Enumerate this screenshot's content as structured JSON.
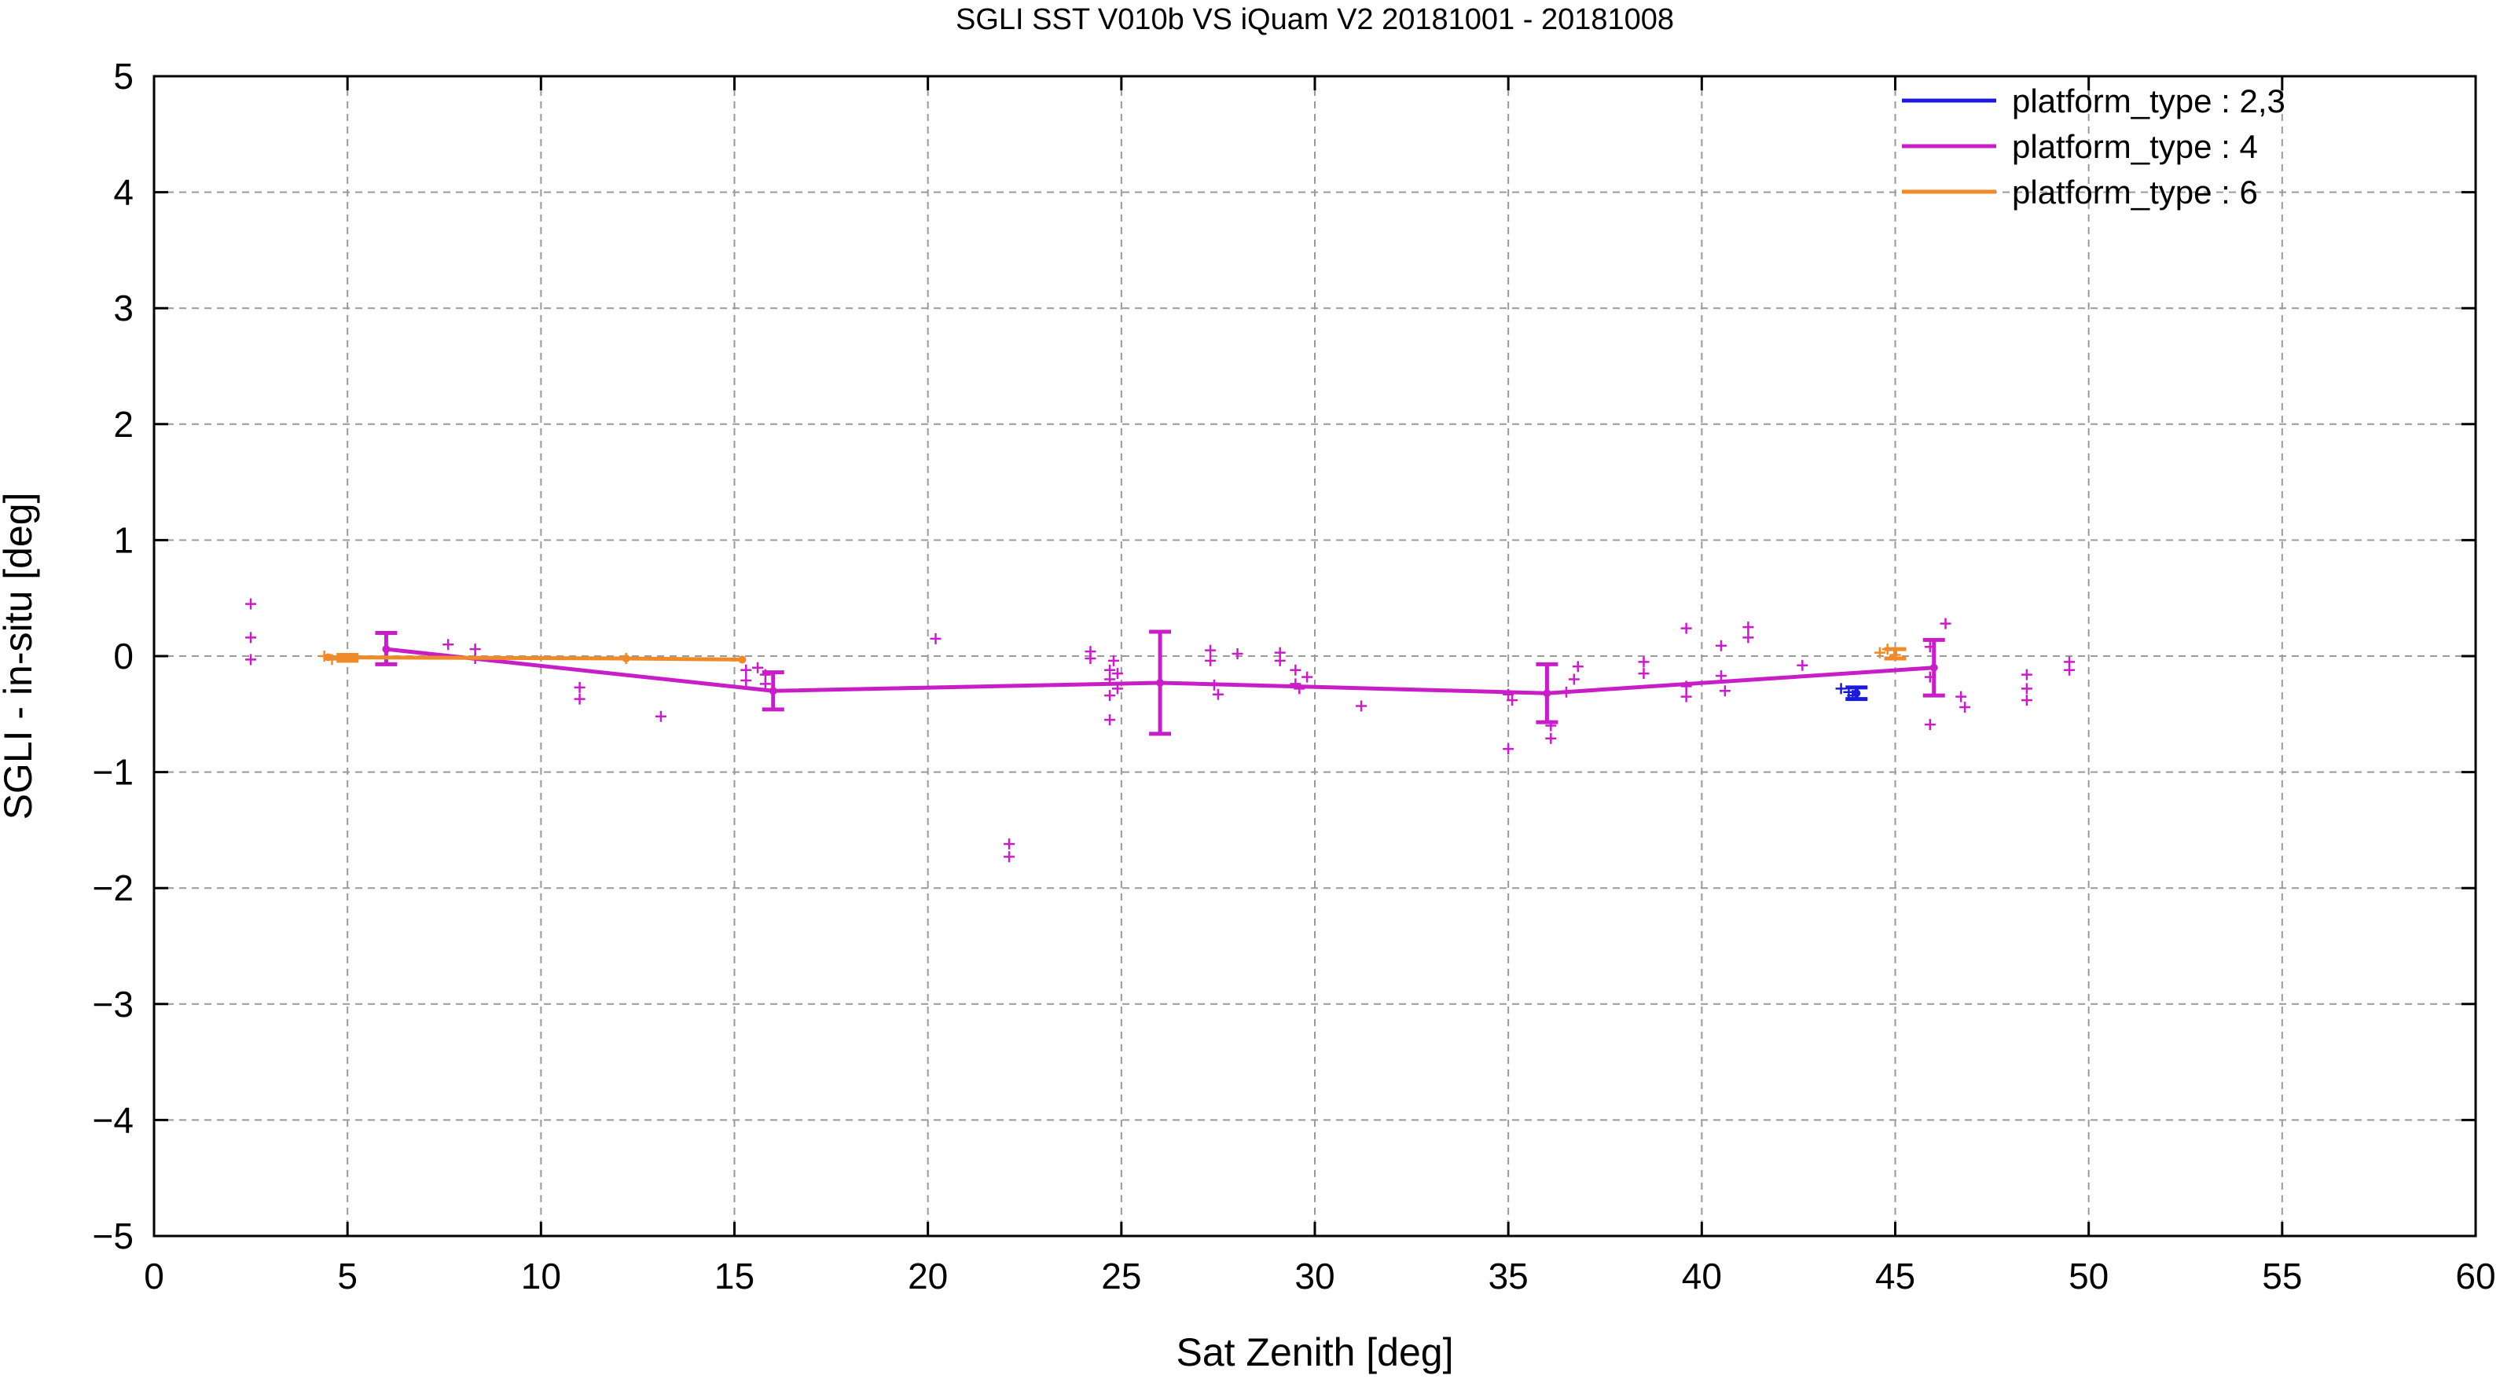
{
  "chart_data": {
    "type": "line",
    "title": "SGLI SST V010b VS iQuam V2 20181001 - 20181008",
    "xlabel": "Sat Zenith [deg]",
    "ylabel": "SGLI - in-situ [deg]",
    "xlim": [
      0,
      60
    ],
    "ylim": [
      -5,
      5
    ],
    "xticks": [
      0,
      5,
      10,
      15,
      20,
      25,
      30,
      35,
      40,
      45,
      50,
      55,
      60
    ],
    "yticks": [
      -5,
      -4,
      -3,
      -2,
      -1,
      0,
      1,
      2,
      3,
      4,
      5
    ],
    "x_tick_labels": [
      "0",
      "5",
      "10",
      "15",
      "20",
      "25",
      "30",
      "35",
      "40",
      "45",
      "50",
      "55",
      "60"
    ],
    "y_tick_labels": [
      "−5",
      "−4",
      "−3",
      "−2",
      "−1",
      "0",
      "1",
      "2",
      "3",
      "4",
      "5"
    ],
    "grid": true,
    "legend_position": "top-right",
    "series": [
      {
        "name": "platform_type : 2,3",
        "color": "#1a1adb",
        "mean_line": [
          {
            "x": 44.0,
            "y": -0.32
          }
        ],
        "error_bars": [
          {
            "x": 44.0,
            "low": -0.37,
            "high": -0.27
          }
        ],
        "points": [
          {
            "x": 43.6,
            "y": -0.28
          },
          {
            "x": 43.8,
            "y": -0.31
          },
          {
            "x": 43.9,
            "y": -0.34
          }
        ]
      },
      {
        "name": "platform_type : 4",
        "color": "#c81ec8",
        "mean_line": [
          {
            "x": 6.0,
            "y": 0.06
          },
          {
            "x": 16.0,
            "y": -0.3
          },
          {
            "x": 26.0,
            "y": -0.23
          },
          {
            "x": 36.0,
            "y": -0.32
          },
          {
            "x": 46.0,
            "y": -0.1
          }
        ],
        "error_bars": [
          {
            "x": 6.0,
            "low": -0.07,
            "high": 0.2
          },
          {
            "x": 16.0,
            "low": -0.46,
            "high": -0.14
          },
          {
            "x": 26.0,
            "low": -0.67,
            "high": 0.21
          },
          {
            "x": 36.0,
            "low": -0.57,
            "high": -0.07
          },
          {
            "x": 46.0,
            "low": -0.34,
            "high": 0.14
          }
        ],
        "points": [
          {
            "x": 2.5,
            "y": 0.45
          },
          {
            "x": 2.5,
            "y": 0.16
          },
          {
            "x": 2.5,
            "y": -0.03
          },
          {
            "x": 7.6,
            "y": 0.1
          },
          {
            "x": 8.3,
            "y": 0.06
          },
          {
            "x": 8.3,
            "y": -0.02
          },
          {
            "x": 11.0,
            "y": -0.27
          },
          {
            "x": 11.0,
            "y": -0.37
          },
          {
            "x": 13.1,
            "y": -0.52
          },
          {
            "x": 15.3,
            "y": -0.12
          },
          {
            "x": 15.3,
            "y": -0.21
          },
          {
            "x": 15.6,
            "y": -0.1
          },
          {
            "x": 15.8,
            "y": -0.16
          },
          {
            "x": 15.8,
            "y": -0.24
          },
          {
            "x": 20.2,
            "y": 0.15
          },
          {
            "x": 22.1,
            "y": -1.62
          },
          {
            "x": 22.1,
            "y": -1.73
          },
          {
            "x": 24.2,
            "y": 0.04
          },
          {
            "x": 24.2,
            "y": -0.02
          },
          {
            "x": 24.7,
            "y": -0.12
          },
          {
            "x": 24.7,
            "y": -0.2
          },
          {
            "x": 24.7,
            "y": -0.34
          },
          {
            "x": 24.7,
            "y": -0.55
          },
          {
            "x": 24.8,
            "y": -0.04
          },
          {
            "x": 24.9,
            "y": -0.15
          },
          {
            "x": 24.9,
            "y": -0.28
          },
          {
            "x": 27.3,
            "y": 0.05
          },
          {
            "x": 27.3,
            "y": -0.04
          },
          {
            "x": 27.4,
            "y": -0.25
          },
          {
            "x": 27.5,
            "y": -0.33
          },
          {
            "x": 28.0,
            "y": 0.02
          },
          {
            "x": 29.1,
            "y": 0.03
          },
          {
            "x": 29.1,
            "y": -0.04
          },
          {
            "x": 29.5,
            "y": -0.12
          },
          {
            "x": 29.5,
            "y": -0.24
          },
          {
            "x": 29.6,
            "y": -0.28
          },
          {
            "x": 29.8,
            "y": -0.18
          },
          {
            "x": 31.2,
            "y": -0.43
          },
          {
            "x": 35.0,
            "y": -0.33
          },
          {
            "x": 35.0,
            "y": -0.8
          },
          {
            "x": 35.1,
            "y": -0.38
          },
          {
            "x": 36.1,
            "y": -0.6
          },
          {
            "x": 36.1,
            "y": -0.71
          },
          {
            "x": 36.5,
            "y": -0.31
          },
          {
            "x": 36.7,
            "y": -0.2
          },
          {
            "x": 36.8,
            "y": -0.09
          },
          {
            "x": 38.5,
            "y": -0.05
          },
          {
            "x": 38.5,
            "y": -0.15
          },
          {
            "x": 39.6,
            "y": 0.24
          },
          {
            "x": 39.6,
            "y": -0.26
          },
          {
            "x": 39.6,
            "y": -0.35
          },
          {
            "x": 40.5,
            "y": 0.09
          },
          {
            "x": 40.5,
            "y": -0.17
          },
          {
            "x": 40.6,
            "y": -0.3
          },
          {
            "x": 41.2,
            "y": 0.25
          },
          {
            "x": 41.2,
            "y": 0.16
          },
          {
            "x": 42.6,
            "y": -0.08
          },
          {
            "x": 45.9,
            "y": -0.59
          },
          {
            "x": 45.9,
            "y": -0.18
          },
          {
            "x": 45.9,
            "y": 0.08
          },
          {
            "x": 46.3,
            "y": 0.28
          },
          {
            "x": 46.7,
            "y": -0.35
          },
          {
            "x": 46.8,
            "y": -0.44
          },
          {
            "x": 48.4,
            "y": -0.16
          },
          {
            "x": 48.4,
            "y": -0.28
          },
          {
            "x": 48.4,
            "y": -0.38
          },
          {
            "x": 49.5,
            "y": -0.05
          },
          {
            "x": 49.5,
            "y": -0.12
          }
        ]
      },
      {
        "name": "platform_type : 6",
        "color": "#f08a28",
        "mean_line": [
          {
            "x": 4.5,
            "y": -0.01
          },
          {
            "x": 12.2,
            "y": -0.02
          },
          {
            "x": 15.2,
            "y": -0.03
          }
        ],
        "error_bars": [
          {
            "x": 5.0,
            "low": -0.04,
            "high": 0.01
          },
          {
            "x": 45.0,
            "low": -0.02,
            "high": 0.06
          }
        ],
        "points": [
          {
            "x": 4.4,
            "y": 0.0
          },
          {
            "x": 4.6,
            "y": -0.03
          },
          {
            "x": 12.2,
            "y": -0.02
          },
          {
            "x": 44.6,
            "y": 0.03
          },
          {
            "x": 44.8,
            "y": 0.06
          },
          {
            "x": 45.0,
            "y": 0.01
          }
        ]
      }
    ]
  }
}
